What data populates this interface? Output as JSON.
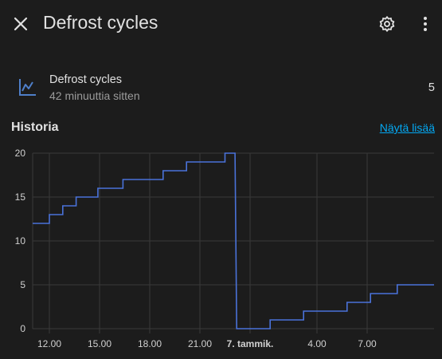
{
  "header": {
    "title": "Defrost cycles",
    "close_icon": "close-icon",
    "settings_icon": "gear-icon",
    "more_icon": "more-vertical-icon"
  },
  "entity": {
    "icon": "chart-line-icon",
    "name": "Defrost cycles",
    "last_changed": "42 minuuttia sitten",
    "value": "5"
  },
  "history": {
    "title": "Historia",
    "show_more": "Näytä lisää"
  },
  "colors": {
    "background": "#1c1c1c",
    "line": "#4a72d9",
    "link": "#03a9f4",
    "grid": "#3a3a3a"
  },
  "chart_data": {
    "type": "line",
    "x_ticks": [
      "12.00",
      "15.00",
      "18.00",
      "21.00",
      "7. tammik.",
      "4.00",
      "7.00"
    ],
    "x_tick_hours": [
      12,
      15,
      18,
      21,
      24,
      28,
      31
    ],
    "y_ticks": [
      0,
      5,
      10,
      15,
      20
    ],
    "ylim": [
      0,
      20
    ],
    "xlim": [
      11,
      35
    ],
    "grid": true,
    "series": [
      {
        "points": [
          [
            11.0,
            12
          ],
          [
            12.0,
            12
          ],
          [
            12.0,
            13
          ],
          [
            12.8,
            13
          ],
          [
            12.8,
            14
          ],
          [
            13.6,
            14
          ],
          [
            13.6,
            15
          ],
          [
            14.9,
            15
          ],
          [
            14.9,
            16
          ],
          [
            16.4,
            16
          ],
          [
            16.4,
            17
          ],
          [
            18.8,
            17
          ],
          [
            18.8,
            18
          ],
          [
            20.2,
            18
          ],
          [
            20.2,
            19
          ],
          [
            22.5,
            19
          ],
          [
            22.5,
            20
          ],
          [
            23.1,
            20
          ],
          [
            23.2,
            0
          ],
          [
            25.2,
            0
          ],
          [
            25.2,
            1
          ],
          [
            27.2,
            1
          ],
          [
            27.2,
            2
          ],
          [
            29.8,
            2
          ],
          [
            29.8,
            3
          ],
          [
            31.2,
            3
          ],
          [
            31.2,
            4
          ],
          [
            32.8,
            4
          ],
          [
            32.8,
            5
          ],
          [
            35.0,
            5
          ]
        ]
      }
    ]
  }
}
